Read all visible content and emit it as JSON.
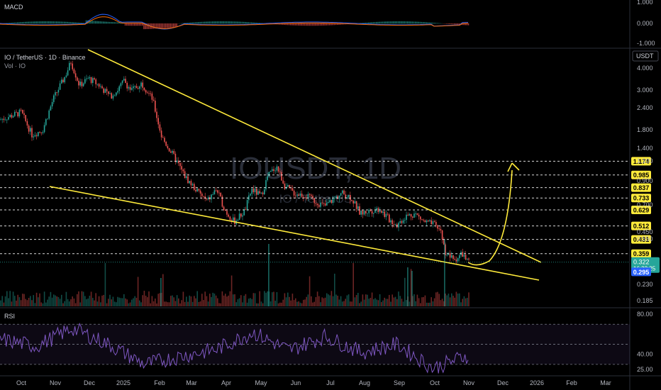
{
  "header": {
    "macd_label": "MACD",
    "symbol_line": "IO / TetherUS · 1D · Binance",
    "vol_label": "Vol · IO",
    "rsi_label": "RSI",
    "watermark": "IOUSDT, 1D",
    "watermark_sub": "IO / TetherUS",
    "currency": "USDT"
  },
  "macd_axis": [
    "1.000",
    "0.000",
    "-1.000"
  ],
  "price_axis": [
    "4.000",
    "3.000",
    "2.400",
    "1.800",
    "1.400",
    "1.100",
    "0.900",
    "0.700",
    "0.550",
    "0.450",
    "0.230",
    "0.185"
  ],
  "rsi_axis": [
    "80.00",
    "40.00",
    "25.00"
  ],
  "levels": [
    {
      "label": "1.174",
      "value": 1.174
    },
    {
      "label": "0.985",
      "value": 0.985
    },
    {
      "label": "0.837",
      "value": 0.837
    },
    {
      "label": "0.733",
      "value": 0.733
    },
    {
      "label": "0.629",
      "value": 0.629
    },
    {
      "label": "0.512",
      "value": 0.512
    },
    {
      "label": "0.431",
      "value": 0.431
    },
    {
      "label": "0.359",
      "value": 0.359
    }
  ],
  "current_price": {
    "label": "0.322",
    "countdown": "16:22:25",
    "value": 0.322
  },
  "low_marker": {
    "label": "0.295",
    "value": 0.295
  },
  "x_axis": [
    "Oct",
    "Nov",
    "Dec",
    "2025",
    "Feb",
    "Mar",
    "Apr",
    "May",
    "Jun",
    "Jul",
    "Aug",
    "Sep",
    "Oct",
    "Nov",
    "Dec",
    "2026",
    "Feb",
    "Mar"
  ],
  "colors": {
    "up": "#26a69a",
    "down": "#ef5350",
    "trend": "#ffeb3b",
    "rsi_line": "#7e57c2",
    "macd_line": "#2962ff",
    "signal_line": "#ff6d00",
    "current_badge": "#26a69a",
    "low_badge": "#2962ff",
    "level_badge": "#ffeb3b"
  },
  "chart_data": {
    "type": "candlestick",
    "scale": "log",
    "ylim": [
      0.185,
      4.4
    ],
    "x": [
      "2024-10",
      "2024-11",
      "2024-12",
      "2025-01",
      "2025-02",
      "2025-03",
      "2025-04",
      "2025-05",
      "2025-06",
      "2025-07",
      "2025-08",
      "2025-09",
      "2025-10",
      "2025-11"
    ],
    "close": [
      2.1,
      1.8,
      3.6,
      3.2,
      1.55,
      0.72,
      0.62,
      1.0,
      0.74,
      0.86,
      0.62,
      0.55,
      0.35,
      0.322
    ],
    "rsi_ylim": [
      20,
      85
    ],
    "rsi": [
      55,
      48,
      66,
      50,
      30,
      38,
      45,
      62,
      44,
      58,
      42,
      50,
      26,
      40
    ]
  }
}
